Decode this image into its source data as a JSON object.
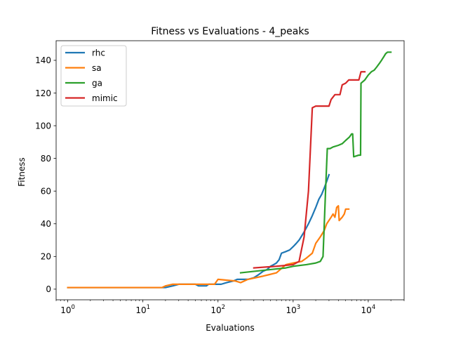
{
  "chart_data": {
    "type": "line",
    "title": "Fitness vs Evaluations - 4_peaks",
    "xlabel": "Evaluations",
    "ylabel": "Fitness",
    "x_scale": "log",
    "xlim": [
      0.7,
      30000
    ],
    "ylim": [
      -6.5,
      152
    ],
    "x_ticks": [
      {
        "value": 1,
        "base": "10",
        "exp": "0"
      },
      {
        "value": 10,
        "base": "10",
        "exp": "1"
      },
      {
        "value": 100,
        "base": "10",
        "exp": "2"
      },
      {
        "value": 1000,
        "base": "10",
        "exp": "3"
      },
      {
        "value": 10000,
        "base": "10",
        "exp": "4"
      }
    ],
    "y_ticks": [
      0,
      20,
      40,
      60,
      80,
      100,
      120,
      140
    ],
    "grid": false,
    "legend": {
      "placement": "top-left",
      "entries": [
        "rhc",
        "sa",
        "ga",
        "mimic"
      ]
    },
    "series": [
      {
        "name": "rhc",
        "color": "#1f77b4",
        "points": [
          [
            1,
            1
          ],
          [
            20,
            1
          ],
          [
            25,
            2
          ],
          [
            30,
            3
          ],
          [
            50,
            3
          ],
          [
            55,
            2
          ],
          [
            70,
            2
          ],
          [
            75,
            3
          ],
          [
            110,
            3
          ],
          [
            130,
            4
          ],
          [
            160,
            5
          ],
          [
            180,
            6
          ],
          [
            250,
            6
          ],
          [
            300,
            7
          ],
          [
            350,
            9
          ],
          [
            400,
            11
          ],
          [
            450,
            12
          ],
          [
            500,
            14
          ],
          [
            550,
            15
          ],
          [
            600,
            16
          ],
          [
            650,
            18
          ],
          [
            700,
            22
          ],
          [
            800,
            23
          ],
          [
            900,
            24
          ],
          [
            1000,
            26
          ],
          [
            1100,
            28
          ],
          [
            1200,
            30
          ],
          [
            1400,
            35
          ],
          [
            1600,
            40
          ],
          [
            1800,
            45
          ],
          [
            2000,
            50
          ],
          [
            2200,
            55
          ],
          [
            2400,
            58
          ],
          [
            2600,
            62
          ],
          [
            2800,
            66
          ],
          [
            3000,
            70
          ]
        ]
      },
      {
        "name": "sa",
        "color": "#ff7f0e",
        "points": [
          [
            1,
            1
          ],
          [
            18,
            1
          ],
          [
            20,
            2
          ],
          [
            25,
            3
          ],
          [
            90,
            3
          ],
          [
            100,
            6
          ],
          [
            170,
            5
          ],
          [
            200,
            4
          ],
          [
            250,
            6
          ],
          [
            400,
            8
          ],
          [
            600,
            10
          ],
          [
            800,
            15
          ],
          [
            1000,
            16
          ],
          [
            1300,
            17
          ],
          [
            1500,
            19
          ],
          [
            1800,
            22
          ],
          [
            2000,
            28
          ],
          [
            2300,
            32
          ],
          [
            2600,
            36
          ],
          [
            2800,
            40
          ],
          [
            3200,
            44
          ],
          [
            3400,
            46
          ],
          [
            3600,
            44
          ],
          [
            3800,
            50
          ],
          [
            4000,
            51
          ],
          [
            4100,
            42
          ],
          [
            4500,
            44
          ],
          [
            4800,
            46
          ],
          [
            5000,
            49
          ],
          [
            5500,
            49
          ]
        ]
      },
      {
        "name": "ga",
        "color": "#2ca02c",
        "points": [
          [
            200,
            10
          ],
          [
            500,
            12
          ],
          [
            800,
            13
          ],
          [
            1000,
            14
          ],
          [
            1500,
            15
          ],
          [
            2000,
            16
          ],
          [
            2300,
            17
          ],
          [
            2500,
            20
          ],
          [
            2700,
            60
          ],
          [
            2850,
            86
          ],
          [
            3100,
            86
          ],
          [
            3400,
            87
          ],
          [
            4000,
            88
          ],
          [
            4500,
            89
          ],
          [
            5000,
            91
          ],
          [
            5600,
            93
          ],
          [
            6000,
            95
          ],
          [
            6200,
            95
          ],
          [
            6400,
            81
          ],
          [
            7500,
            82
          ],
          [
            7900,
            82
          ],
          [
            8000,
            126
          ],
          [
            9000,
            128
          ],
          [
            10000,
            131
          ],
          [
            11000,
            133
          ],
          [
            12000,
            134
          ],
          [
            13000,
            136
          ],
          [
            14000,
            138
          ],
          [
            15000,
            140
          ],
          [
            16000,
            142
          ],
          [
            17000,
            144
          ],
          [
            18000,
            145
          ],
          [
            20000,
            145
          ]
        ]
      },
      {
        "name": "mimic",
        "color": "#d62728",
        "points": [
          [
            300,
            13
          ],
          [
            600,
            14
          ],
          [
            1000,
            15
          ],
          [
            1200,
            17
          ],
          [
            1400,
            32
          ],
          [
            1600,
            60
          ],
          [
            1800,
            111
          ],
          [
            2000,
            112
          ],
          [
            3000,
            112
          ],
          [
            3200,
            116
          ],
          [
            3600,
            119
          ],
          [
            4200,
            119
          ],
          [
            4500,
            125
          ],
          [
            5000,
            126
          ],
          [
            5500,
            128
          ],
          [
            6500,
            128
          ],
          [
            7500,
            128
          ],
          [
            8000,
            133
          ],
          [
            9000,
            133
          ]
        ]
      }
    ]
  }
}
